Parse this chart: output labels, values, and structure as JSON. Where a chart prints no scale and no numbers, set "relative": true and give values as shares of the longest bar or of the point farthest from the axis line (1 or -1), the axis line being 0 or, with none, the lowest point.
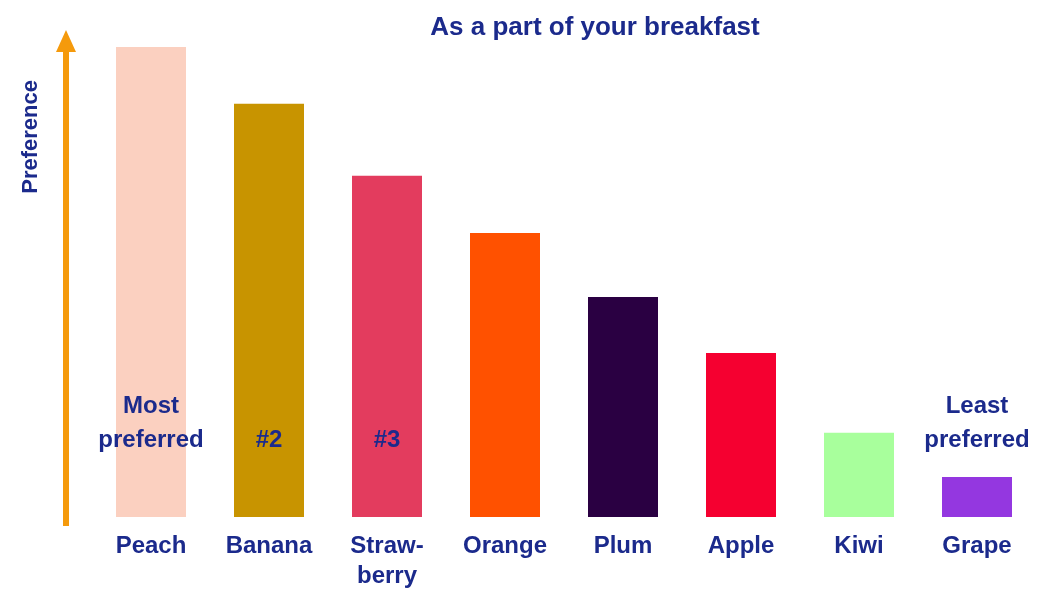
{
  "chart_data": {
    "type": "bar",
    "title": "As a part of your breakfast",
    "ylabel": "Preference",
    "relative": true,
    "categories": [
      "Peach",
      "Banana",
      "Straw-berry",
      "Orange",
      "Plum",
      "Apple",
      "Kiwi",
      "Grape"
    ],
    "values": [
      1,
      0.879,
      0.726,
      0.604,
      0.468,
      0.349,
      0.179,
      0.085
    ],
    "colors": [
      "#fbd0c0",
      "#c89400",
      "#e33c5e",
      "#ff5100",
      "#2a0042",
      "#f50030",
      "#a8ff9c",
      "#9437e0"
    ],
    "annotations": [
      "Most preferred",
      "#2",
      "#3",
      "Least preferred"
    ],
    "grid": false
  }
}
